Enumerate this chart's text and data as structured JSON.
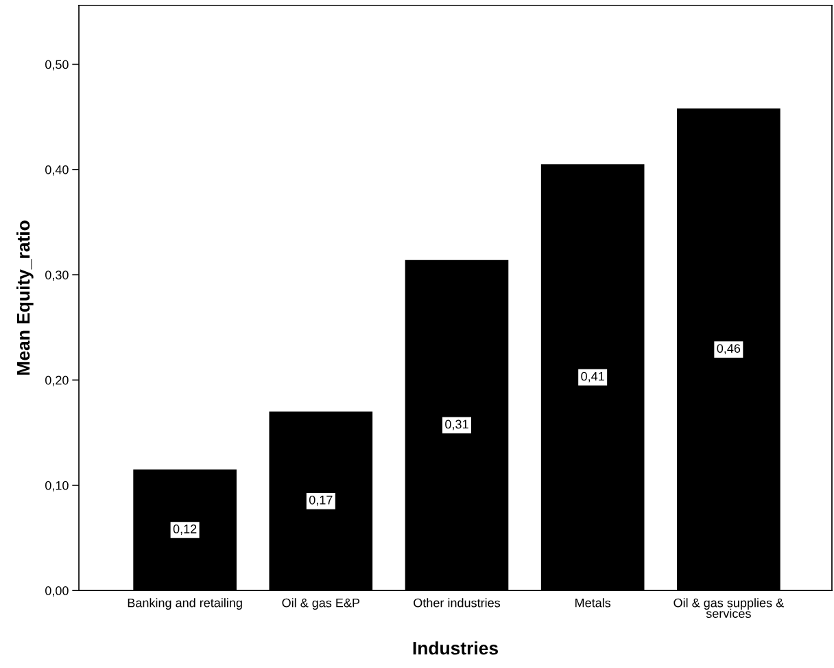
{
  "chart_data": {
    "type": "bar",
    "xlabel": "Industries",
    "ylabel": "Mean Equity_ratio",
    "categories": [
      "Banking and retailing",
      "Oil & gas E&P",
      "Other industries",
      "Metals",
      "Oil & gas supplies &\nservices"
    ],
    "values": [
      0.115,
      0.17,
      0.314,
      0.405,
      0.458
    ],
    "value_labels": [
      "0,12",
      "0,17",
      "0,31",
      "0,41",
      "0,46"
    ],
    "color": "#000000",
    "ylim": [
      0,
      0.556
    ],
    "yticks": [
      {
        "value": 0,
        "label": "0,00"
      },
      {
        "value": 0.1,
        "label": "0,10"
      },
      {
        "value": 0.2,
        "label": "0,20"
      },
      {
        "value": 0.3,
        "label": "0,30"
      },
      {
        "value": 0.4,
        "label": "0,40"
      },
      {
        "value": 0.5,
        "label": "0,50"
      }
    ],
    "grid": false,
    "legend": false
  }
}
